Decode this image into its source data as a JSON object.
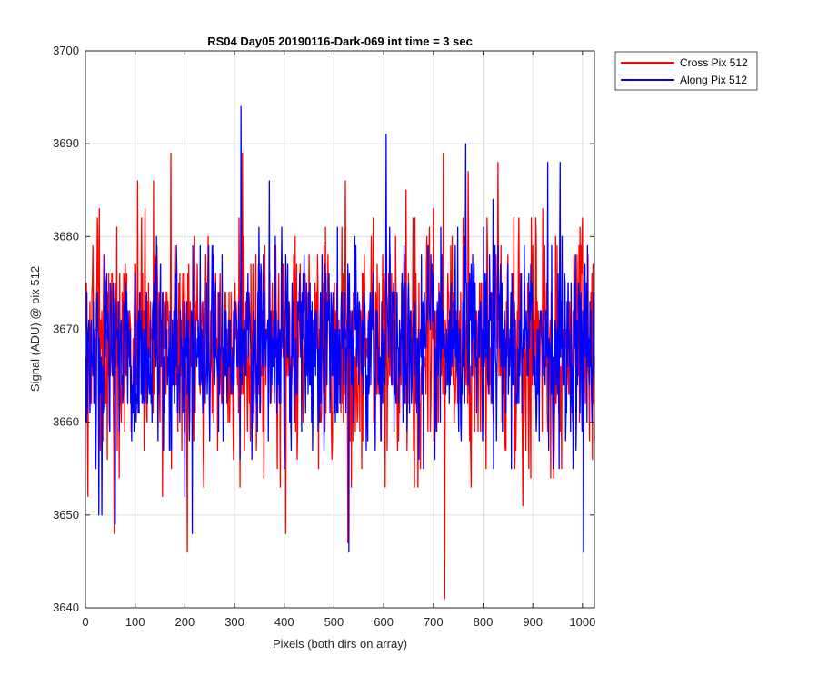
{
  "chart_data": {
    "type": "line",
    "title": "RS04 Day05 20190116-Dark-069 int time = 3 sec",
    "xlabel": "Pixels (both dirs on array)",
    "ylabel": "Signal (ADU) @ pix 512",
    "xlim": [
      0,
      1024
    ],
    "ylim": [
      3640,
      3700
    ],
    "xticks": [
      "0",
      "100",
      "200",
      "300",
      "400",
      "500",
      "600",
      "700",
      "800",
      "900",
      "1000"
    ],
    "yticks": [
      "3640",
      "3650",
      "3660",
      "3670",
      "3680",
      "3690",
      "3700"
    ],
    "grid": true,
    "legend_position": "outside-top-right",
    "series": [
      {
        "name": "Cross Pix 512",
        "color": "#ff0000",
        "x_start": 1,
        "x_step": 1,
        "count": 1024,
        "baseline_mean": 3668,
        "baseline_noise_range": [
          3655,
          3680
        ],
        "extreme_points": [
          {
            "x": 5,
            "y": 3652
          },
          {
            "x": 28,
            "y": 3683
          },
          {
            "x": 58,
            "y": 3648
          },
          {
            "x": 105,
            "y": 3686
          },
          {
            "x": 120,
            "y": 3683
          },
          {
            "x": 137,
            "y": 3686
          },
          {
            "x": 155,
            "y": 3652
          },
          {
            "x": 172,
            "y": 3689
          },
          {
            "x": 205,
            "y": 3646
          },
          {
            "x": 219,
            "y": 3680
          },
          {
            "x": 316,
            "y": 3689
          },
          {
            "x": 403,
            "y": 3648
          },
          {
            "x": 523,
            "y": 3686
          },
          {
            "x": 528,
            "y": 3647
          },
          {
            "x": 575,
            "y": 3680
          },
          {
            "x": 645,
            "y": 3685
          },
          {
            "x": 700,
            "y": 3683
          },
          {
            "x": 720,
            "y": 3689
          },
          {
            "x": 723,
            "y": 3641
          },
          {
            "x": 760,
            "y": 3682
          },
          {
            "x": 770,
            "y": 3687
          },
          {
            "x": 830,
            "y": 3688
          },
          {
            "x": 880,
            "y": 3651
          },
          {
            "x": 920,
            "y": 3683
          },
          {
            "x": 1000,
            "y": 3682
          }
        ]
      },
      {
        "name": "Along Pix 512",
        "color": "#0000ff",
        "x_start": 1,
        "x_step": 1,
        "count": 1024,
        "baseline_mean": 3668,
        "baseline_noise_range": [
          3657,
          3679
        ],
        "extreme_points": [
          {
            "x": 27,
            "y": 3650
          },
          {
            "x": 33,
            "y": 3650
          },
          {
            "x": 60,
            "y": 3649
          },
          {
            "x": 200,
            "y": 3652
          },
          {
            "x": 215,
            "y": 3648
          },
          {
            "x": 313,
            "y": 3694
          },
          {
            "x": 370,
            "y": 3686
          },
          {
            "x": 530,
            "y": 3646
          },
          {
            "x": 605,
            "y": 3691
          },
          {
            "x": 680,
            "y": 3655
          },
          {
            "x": 765,
            "y": 3690
          },
          {
            "x": 820,
            "y": 3684
          },
          {
            "x": 930,
            "y": 3688
          },
          {
            "x": 955,
            "y": 3688
          },
          {
            "x": 1002,
            "y": 3646
          },
          {
            "x": 1010,
            "y": 3679
          }
        ]
      }
    ]
  }
}
